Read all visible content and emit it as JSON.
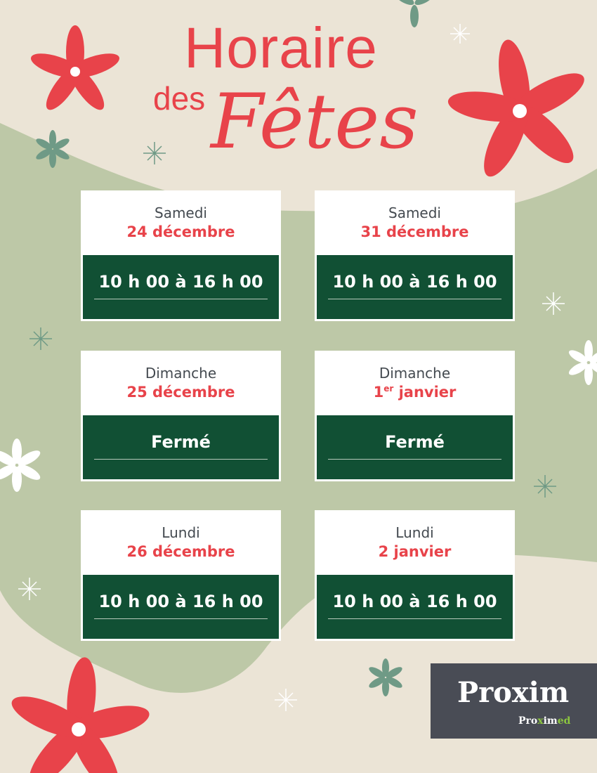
{
  "title": {
    "line1": "Horaire",
    "line2": "des",
    "line3": "Fêtes"
  },
  "colors": {
    "background": "#ebe4d6",
    "blob": "#bdc8a7",
    "accent_red": "#e8434a",
    "dark_green": "#115034",
    "logo_bg": "#494c55",
    "logo_green": "#8cc63f"
  },
  "schedule": [
    {
      "day": "Samedi",
      "date": "24 décembre",
      "hours": "10 h 00 à 16 h 00"
    },
    {
      "day": "Samedi",
      "date": "31 décembre",
      "hours": "10 h 00 à 16 h 00"
    },
    {
      "day": "Dimanche",
      "date": "25 décembre",
      "hours": "Fermé"
    },
    {
      "day": "Dimanche",
      "date_num": "1",
      "date_sup": "er",
      "date_rest": " janvier",
      "hours": "Fermé"
    },
    {
      "day": "Lundi",
      "date": "26 décembre",
      "hours": "10 h 00 à 16 h 00"
    },
    {
      "day": "Lundi",
      "date": "2 janvier",
      "hours": "10 h 00 à 16 h 00"
    }
  ],
  "logo": {
    "brand": "Proxim",
    "sub_brand_prefix": "Pro",
    "sub_brand_x": "x",
    "sub_brand_im": "im",
    "sub_brand_suffix": "ed"
  },
  "decorations": [
    "poinsettia-icon",
    "star-sparkle-icon",
    "snowflake-icon"
  ]
}
